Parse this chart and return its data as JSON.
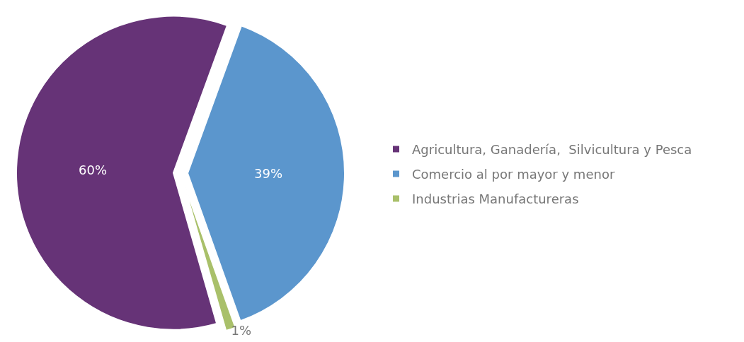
{
  "chart_data": {
    "type": "pie",
    "categories": [
      "Agricultura, Ganadería,  Silvicultura y Pesca",
      "Comercio al por mayor y menor",
      "Industrias Manufactureras"
    ],
    "values": [
      60,
      39,
      1
    ],
    "colors": [
      "#663377",
      "#5b96cd",
      "#a9c06a"
    ],
    "value_labels": [
      "60%",
      "39%",
      "1%"
    ],
    "legend": "right"
  }
}
